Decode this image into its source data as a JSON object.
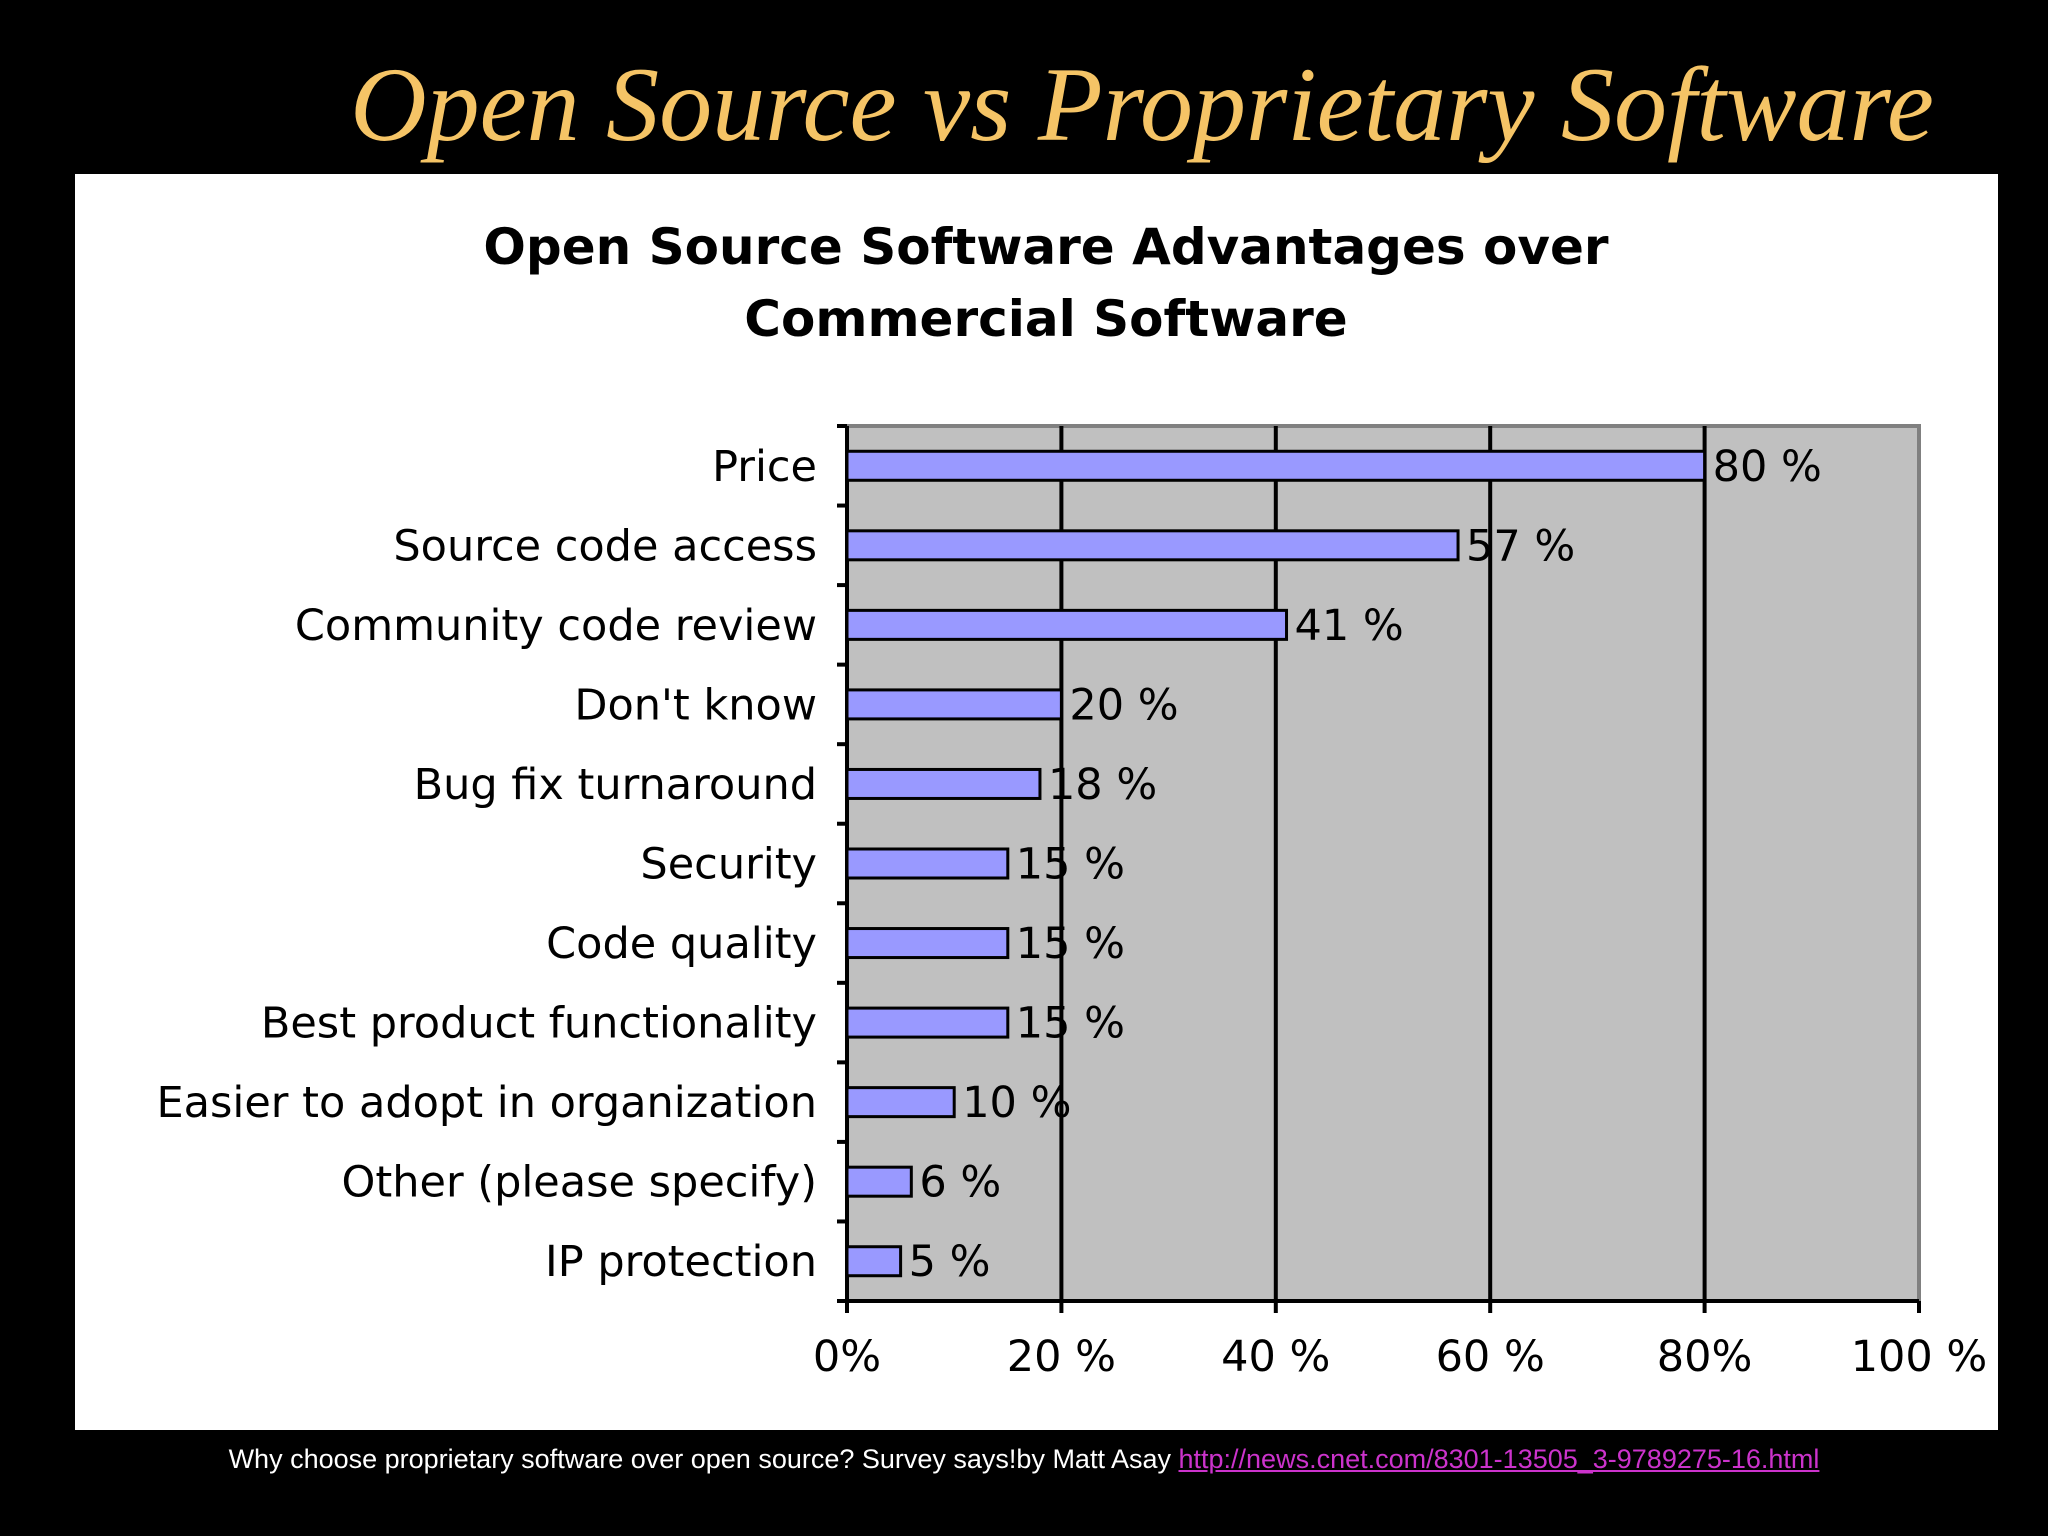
{
  "slide": {
    "title": "Open Source vs Proprietary Software",
    "caption_text": "Why choose proprietary software over open source? Survey says!by Matt Asay ",
    "caption_link": "http://news.cnet.com/8301-13505_3-9789275-16.html"
  },
  "colors": {
    "background": "#000000",
    "title": "#f5c466",
    "panel": "#ffffff",
    "plot_area": "#c0c0c0",
    "bar": "#9999ff",
    "link": "#cc33cc"
  },
  "chart_data": {
    "type": "bar",
    "orientation": "horizontal",
    "title": [
      "Open Source Software Advantages over",
      "Commercial Software"
    ],
    "categories": [
      "Price",
      "Source code access",
      "Community code review",
      "Don't know",
      "Bug fix turnaround",
      "Security",
      "Code quality",
      "Best product functionality",
      "Easier to adopt in organization",
      "Other (please specify)",
      "IP protection"
    ],
    "values": [
      80,
      57,
      41,
      20,
      18,
      15,
      15,
      15,
      10,
      6,
      5
    ],
    "value_labels": [
      "80 %",
      "57 %",
      "41 %",
      "20 %",
      "18 %",
      "15 %",
      "15 %",
      "15 %",
      "10 %",
      "6 %",
      "5 %"
    ],
    "xlim": [
      0,
      100
    ],
    "xticks": [
      0,
      20,
      40,
      60,
      80,
      100
    ],
    "xtick_labels": [
      "0%",
      "20 %",
      "40 %",
      "60 %",
      "80%",
      "100 %"
    ],
    "grid": true,
    "legend": "none"
  }
}
